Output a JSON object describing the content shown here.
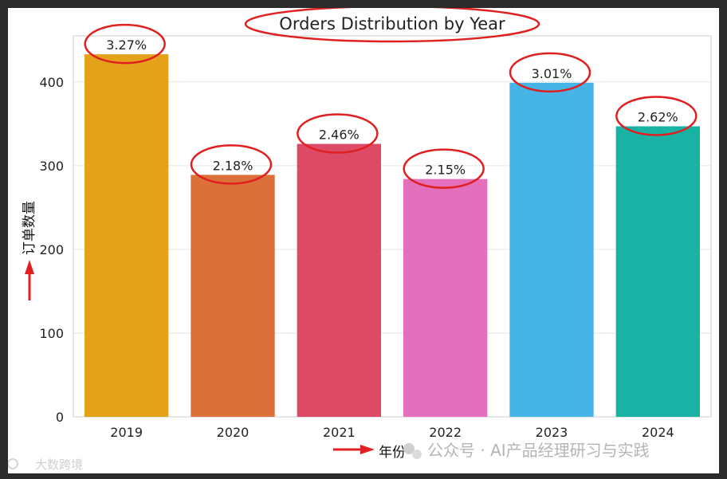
{
  "chart_data": {
    "type": "bar",
    "title": "Orders Distribution by Year",
    "xlabel": "年份",
    "ylabel": "订单数量",
    "categories": [
      "2019",
      "2020",
      "2021",
      "2022",
      "2023",
      "2024"
    ],
    "values": [
      433,
      289,
      326,
      284,
      399,
      347
    ],
    "data_labels": [
      "3.27%",
      "2.18%",
      "2.46%",
      "2.15%",
      "3.01%",
      "2.62%"
    ],
    "colors": [
      "#e3a21a",
      "#db7139",
      "#dc4a66",
      "#e46fbd",
      "#46b4e6",
      "#19b3a6"
    ],
    "ylim": [
      0,
      455
    ],
    "yticks": [
      0,
      100,
      200,
      300,
      400
    ],
    "ytick_labels": [
      "0",
      "100",
      "200",
      "300",
      "400"
    ],
    "grid": "y",
    "annotation_color": "#e02020"
  },
  "watermark": {
    "wechat_text": "公众号 · AI产品经理研习与实践",
    "corner_text": "大数跨境"
  }
}
